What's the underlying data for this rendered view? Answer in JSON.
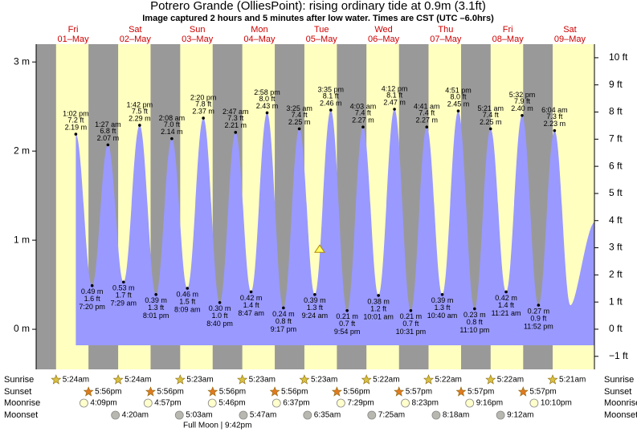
{
  "chart_data": {
    "type": "tide",
    "title": "Potrero Grande (OlliesPoint): rising  ordinary tide at 0.9m (3.1ft)",
    "subtitle": "Image captured 2 hours and 5 minutes after low water. Times are CST (UTC –6.0hrs)",
    "ylim": [
      -0.45,
      3.2
    ],
    "yticks": [
      {
        "value": 0,
        "label": "0 m"
      },
      {
        "value": 1,
        "label": "1 m"
      },
      {
        "value": 2,
        "label": "2 m"
      },
      {
        "value": 3,
        "label": "3 m"
      }
    ],
    "y2lim": [
      -1.48,
      10.5
    ],
    "y2ticks": [
      {
        "value": -1,
        "label": "−1 ft"
      },
      {
        "value": 0,
        "label": "0 ft"
      },
      {
        "value": 1,
        "label": "1 ft"
      },
      {
        "value": 2,
        "label": "2 ft"
      },
      {
        "value": 3,
        "label": "3 ft"
      },
      {
        "value": 4,
        "label": "4 ft"
      },
      {
        "value": 5,
        "label": "5 ft"
      },
      {
        "value": 6,
        "label": "6 ft"
      },
      {
        "value": 7,
        "label": "7 ft"
      },
      {
        "value": 8,
        "label": "8 ft"
      },
      {
        "value": 9,
        "label": "9 ft"
      },
      {
        "value": 10,
        "label": "10 ft"
      }
    ],
    "color": "#9999ff",
    "day_color": "#ffffc0",
    "night_color": "#999999",
    "current_m": 0.9,
    "row_labels": {
      "sunrise": "Sunrise",
      "sunset": "Sunset",
      "moonrise": "Moonrise",
      "moonset": "Moonset"
    },
    "moon_phase": "Full Moon | 9:42pm",
    "days": [
      {
        "dow": "Fri",
        "date": "01–May",
        "sunrise": "5:24am",
        "sunset": "5:56pm",
        "moonrise": "4:09pm",
        "moonset": null,
        "tides": {
          "times": [
            "1:02 pm",
            "7:20 pm"
          ],
          "values": [
            2.19,
            0.49
          ],
          "value_labels": [
            "2.19 m",
            "0.49 m"
          ],
          "ft_labels": [
            "7.2 ft",
            "1.6 ft"
          ]
        }
      },
      {
        "dow": "Sat",
        "date": "02–May",
        "sunrise": "5:24am",
        "sunset": "5:56pm",
        "moonrise": "4:57pm",
        "moonset": "4:20am",
        "tides": {
          "times": [
            "1:27 am",
            "7:29 am",
            "1:42 pm",
            "8:01 pm"
          ],
          "values": [
            2.07,
            0.53,
            2.29,
            0.39
          ],
          "value_labels": [
            "2.07 m",
            "0.53 m",
            "2.29 m",
            "0.39 m"
          ],
          "ft_labels": [
            "6.8 ft",
            "1.7 ft",
            "7.5 ft",
            "1.3 ft"
          ]
        }
      },
      {
        "dow": "Sun",
        "date": "03–May",
        "sunrise": "5:23am",
        "sunset": "5:56pm",
        "moonrise": "5:46pm",
        "moonset": "5:03am",
        "tides": {
          "times": [
            "2:08 am",
            "8:09 am",
            "2:20 pm",
            "8:40 pm"
          ],
          "values": [
            2.14,
            0.46,
            2.37,
            0.3
          ],
          "value_labels": [
            "2.14 m",
            "0.46 m",
            "2.37 m",
            "0.30 m"
          ],
          "ft_labels": [
            "7.0 ft",
            "1.5 ft",
            "7.8 ft",
            "1.0 ft"
          ]
        }
      },
      {
        "dow": "Mon",
        "date": "04–May",
        "sunrise": "5:23am",
        "sunset": "5:56pm",
        "moonrise": "6:37pm",
        "moonset": "5:47am",
        "tides": {
          "times": [
            "2:47 am",
            "8:47 am",
            "2:58 pm",
            "9:17 pm"
          ],
          "values": [
            2.21,
            0.42,
            2.43,
            0.24
          ],
          "value_labels": [
            "2.21 m",
            "0.42 m",
            "2.43 m",
            "0.24 m"
          ],
          "ft_labels": [
            "7.3 ft",
            "1.4 ft",
            "8.0 ft",
            "0.8 ft"
          ]
        }
      },
      {
        "dow": "Tue",
        "date": "05–May",
        "sunrise": "5:23am",
        "sunset": "5:56pm",
        "moonrise": "7:29pm",
        "moonset": "6:35am",
        "tides": {
          "times": [
            "3:25 am",
            "9:24 am",
            "3:35 pm",
            "9:54 pm"
          ],
          "values": [
            2.25,
            0.39,
            2.46,
            0.21
          ],
          "value_labels": [
            "2.25 m",
            "0.39 m",
            "2.46 m",
            "0.21 m"
          ],
          "ft_labels": [
            "7.4 ft",
            "1.3 ft",
            "8.1 ft",
            "0.7 ft"
          ]
        }
      },
      {
        "dow": "Wed",
        "date": "06–May",
        "sunrise": "5:22am",
        "sunset": "5:57pm",
        "moonrise": "8:23pm",
        "moonset": "7:25am",
        "tides": {
          "times": [
            "4:03 am",
            "10:01 am",
            "4:12 pm",
            "10:31 pm"
          ],
          "values": [
            2.27,
            0.38,
            2.47,
            0.21
          ],
          "value_labels": [
            "2.27 m",
            "0.38 m",
            "2.47 m",
            "0.21 m"
          ],
          "ft_labels": [
            "7.4 ft",
            "1.2 ft",
            "8.1 ft",
            "0.7 ft"
          ]
        }
      },
      {
        "dow": "Thu",
        "date": "07–May",
        "sunrise": "5:22am",
        "sunset": "5:57pm",
        "moonrise": "9:16pm",
        "moonset": "8:18am",
        "tides": {
          "times": [
            "4:41 am",
            "10:40 am",
            "4:51 pm",
            "11:10 pm"
          ],
          "values": [
            2.27,
            0.39,
            2.45,
            0.23
          ],
          "value_labels": [
            "2.27 m",
            "0.39 m",
            "2.45 m",
            "0.23 m"
          ],
          "ft_labels": [
            "7.4 ft",
            "1.3 ft",
            "8.0 ft",
            "0.8 ft"
          ]
        }
      },
      {
        "dow": "Fri",
        "date": "08–May",
        "sunrise": "5:22am",
        "sunset": "5:57pm",
        "moonrise": "10:10pm",
        "moonset": "9:12am",
        "tides": {
          "times": [
            "5:21 am",
            "11:21 am",
            "5:32 pm",
            "11:52 pm"
          ],
          "values": [
            2.25,
            0.42,
            2.4,
            0.27
          ],
          "value_labels": [
            "2.25 m",
            "0.42 m",
            "2.40 m",
            "0.27 m"
          ],
          "ft_labels": [
            "7.4 ft",
            "1.4 ft",
            "7.9 ft",
            "0.9 ft"
          ]
        }
      },
      {
        "dow": "Sat",
        "date": "09–May",
        "sunrise": "5:21am",
        "sunset": null,
        "moonrise": null,
        "moonset": null,
        "tides": {
          "times": [
            "6:04 am"
          ],
          "values": [
            2.23
          ],
          "value_labels": [
            "2.23 m"
          ],
          "ft_labels": [
            "7.3 ft"
          ]
        }
      }
    ]
  }
}
